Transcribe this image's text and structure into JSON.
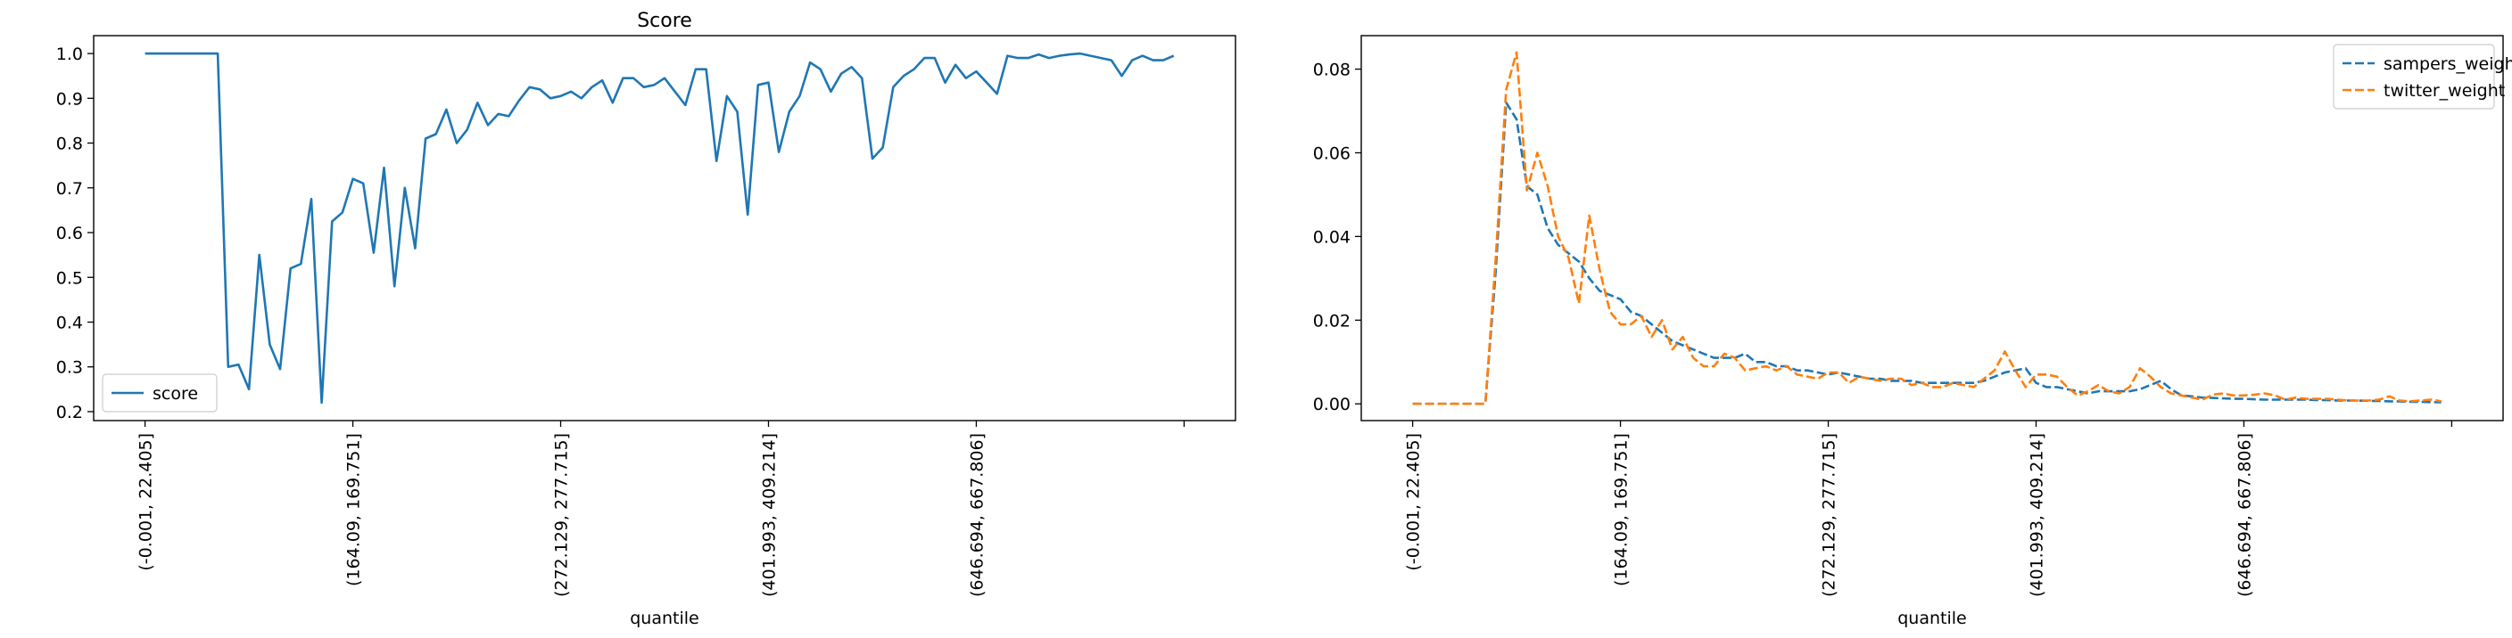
{
  "chart_data": [
    {
      "type": "line",
      "title": "Score",
      "xlabel": "quantile",
      "ylabel": "",
      "x_count": 100,
      "xtick_labels": [
        "(-0.001, 22.405]",
        "(164.09, 169.751]",
        "(272.129, 277.715]",
        "(401.993, 409.214]",
        "(646.694, 667.806]",
        ""
      ],
      "xtick_indices": [
        0,
        20,
        40,
        60,
        80,
        100
      ],
      "ylim": [
        0.18,
        1.04
      ],
      "yticks": [
        0.2,
        0.3,
        0.4,
        0.5,
        0.6,
        0.7,
        0.8,
        0.9,
        1.0
      ],
      "ytick_labels": [
        "0.2",
        "0.3",
        "0.4",
        "0.5",
        "0.6",
        "0.7",
        "0.8",
        "0.9",
        "1.0"
      ],
      "legend_position": "lower-left",
      "series": [
        {
          "name": "score",
          "color": "#1f77b4",
          "dash": "solid",
          "values": [
            1.0,
            1.0,
            1.0,
            1.0,
            1.0,
            1.0,
            1.0,
            1.0,
            0.3,
            0.305,
            0.25,
            0.55,
            0.35,
            0.295,
            0.52,
            0.53,
            0.675,
            0.22,
            0.625,
            0.645,
            0.72,
            0.71,
            0.555,
            0.745,
            0.48,
            0.7,
            0.565,
            0.81,
            0.82,
            0.875,
            0.8,
            0.83,
            0.89,
            0.84,
            0.865,
            0.86,
            0.895,
            0.925,
            0.92,
            0.9,
            0.905,
            0.915,
            0.9,
            0.925,
            0.94,
            0.89,
            0.945,
            0.945,
            0.925,
            0.93,
            0.945,
            0.915,
            0.885,
            0.965,
            0.965,
            0.76,
            0.905,
            0.87,
            0.64,
            0.93,
            0.935,
            0.78,
            0.87,
            0.905,
            0.98,
            0.965,
            0.915,
            0.955,
            0.97,
            0.945,
            0.765,
            0.79,
            0.925,
            0.95,
            0.965,
            0.99,
            0.99,
            0.935,
            0.975,
            0.945,
            0.96,
            0.935,
            0.91,
            0.995,
            0.99,
            0.99,
            0.998,
            0.99,
            0.995,
            0.998,
            1.0,
            0.995,
            0.99,
            0.985,
            0.95,
            0.985,
            0.995,
            0.985,
            0.985,
            0.995
          ]
        }
      ]
    },
    {
      "type": "line",
      "title": "",
      "xlabel": "quantile",
      "ylabel": "",
      "x_count": 100,
      "xtick_labels": [
        "(-0.001, 22.405]",
        "(164.09, 169.751]",
        "(272.129, 277.715]",
        "(401.993, 409.214]",
        "(646.694, 667.806]",
        ""
      ],
      "xtick_indices": [
        0,
        20,
        40,
        60,
        80,
        100
      ],
      "ylim": [
        -0.004,
        0.088
      ],
      "yticks": [
        0.0,
        0.02,
        0.04,
        0.06,
        0.08
      ],
      "ytick_labels": [
        "0.00",
        "0.02",
        "0.04",
        "0.06",
        "0.08"
      ],
      "legend_position": "upper-right",
      "series": [
        {
          "name": "sampers_weight",
          "color": "#1f77b4",
          "dash": "dashed",
          "values": [
            0,
            0,
            0,
            0,
            0,
            0,
            0,
            0,
            0.032,
            0.072,
            0.068,
            0.052,
            0.05,
            0.042,
            0.038,
            0.036,
            0.034,
            0.03,
            0.027,
            0.026,
            0.025,
            0.022,
            0.021,
            0.019,
            0.017,
            0.015,
            0.014,
            0.013,
            0.012,
            0.011,
            0.011,
            0.011,
            0.012,
            0.01,
            0.01,
            0.009,
            0.009,
            0.008,
            0.008,
            0.0075,
            0.007,
            0.0075,
            0.007,
            0.0065,
            0.006,
            0.006,
            0.0055,
            0.0055,
            0.0055,
            0.005,
            0.005,
            0.005,
            0.005,
            0.005,
            0.005,
            0.0055,
            0.0065,
            0.0075,
            0.008,
            0.0085,
            0.005,
            0.004,
            0.004,
            0.0035,
            0.003,
            0.0025,
            0.003,
            0.003,
            0.003,
            0.003,
            0.0035,
            0.0045,
            0.0055,
            0.0035,
            0.002,
            0.0018,
            0.0015,
            0.0014,
            0.0013,
            0.0012,
            0.0012,
            0.0011,
            0.001,
            0.001,
            0.001,
            0.001,
            0.001,
            0.0009,
            0.0009,
            0.0008,
            0.0008,
            0.0008,
            0.0007,
            0.0007,
            0.0006,
            0.0006,
            0.0005,
            0.0005,
            0.0004,
            0.0004
          ]
        },
        {
          "name": "twitter_weight",
          "color": "#ff7f0e",
          "dash": "dashed",
          "values": [
            0,
            0,
            0,
            0,
            0,
            0,
            0,
            0,
            0.035,
            0.075,
            0.084,
            0.051,
            0.06,
            0.052,
            0.04,
            0.035,
            0.024,
            0.045,
            0.032,
            0.022,
            0.019,
            0.019,
            0.021,
            0.016,
            0.02,
            0.013,
            0.016,
            0.011,
            0.009,
            0.009,
            0.012,
            0.011,
            0.008,
            0.0085,
            0.009,
            0.008,
            0.009,
            0.007,
            0.0065,
            0.006,
            0.0075,
            0.0075,
            0.005,
            0.0065,
            0.006,
            0.0055,
            0.006,
            0.006,
            0.0045,
            0.005,
            0.004,
            0.004,
            0.005,
            0.0045,
            0.004,
            0.006,
            0.008,
            0.0125,
            0.008,
            0.004,
            0.007,
            0.007,
            0.0065,
            0.004,
            0.002,
            0.003,
            0.0045,
            0.003,
            0.0025,
            0.004,
            0.0085,
            0.0065,
            0.004,
            0.0025,
            0.002,
            0.0015,
            0.001,
            0.0022,
            0.0025,
            0.002,
            0.002,
            0.0022,
            0.0025,
            0.002,
            0.001,
            0.0015,
            0.0012,
            0.0012,
            0.0012,
            0.001,
            0.0008,
            0.0008,
            0.0008,
            0.001,
            0.0018,
            0.0008,
            0.0006,
            0.0008,
            0.001,
            0.0006
          ]
        }
      ]
    }
  ]
}
